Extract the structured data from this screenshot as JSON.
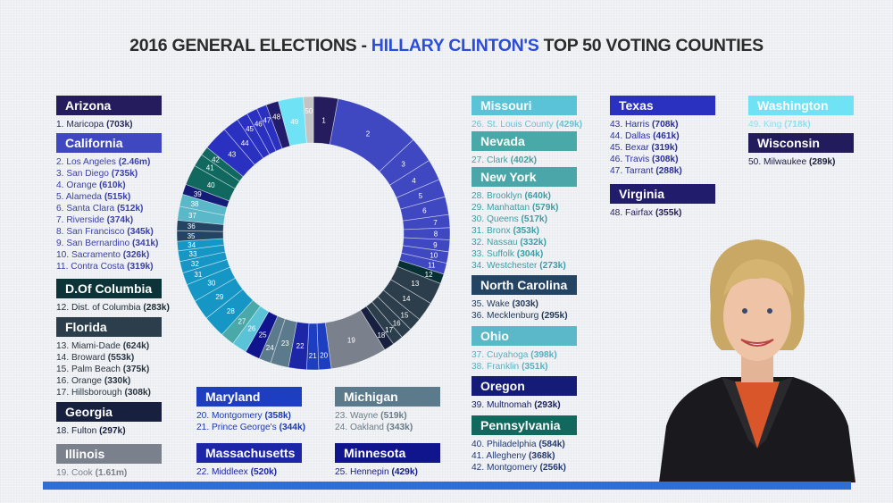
{
  "title": {
    "part1": "2016 GENERAL ELECTIONS - ",
    "highlight": "HILLARY CLINTON'S",
    "part2": " TOP 50 VOTING COUNTIES"
  },
  "colors": {
    "title_highlight": "#2a4ed8",
    "bottom_bar": "#2e6fd6"
  },
  "states": [
    {
      "name": "Arizona",
      "color": "#241c5c",
      "text": "#2a2c5c",
      "items": [
        {
          "label": "1. Maricopa",
          "value": "(703k)"
        }
      ]
    },
    {
      "name": "California",
      "color": "#3f48c0",
      "text": "#3a40a8",
      "items": [
        {
          "label": "2. Los Angeles",
          "value": "(2.46m)"
        },
        {
          "label": "3. San Diego",
          "value": "(735k)"
        },
        {
          "label": "4. Orange",
          "value": "(610k)"
        },
        {
          "label": "5. Alameda",
          "value": "(515k)"
        },
        {
          "label": "6. Santa Clara",
          "value": "(512k)"
        },
        {
          "label": "7. Riverside",
          "value": "(374k)"
        },
        {
          "label": "8. San Francisco",
          "value": "(345k)"
        },
        {
          "label": "9. San Bernardino",
          "value": "(341k)"
        },
        {
          "label": "10. Sacramento",
          "value": "(326k)"
        },
        {
          "label": "11. Contra Costa",
          "value": "(319k)"
        }
      ]
    },
    {
      "name": "D.Of Columbia",
      "color": "#0c3338",
      "text": "#1a2a30",
      "items": [
        {
          "label": "12. Dist. of Columbia",
          "value": "(283k)"
        }
      ]
    },
    {
      "name": "Florida",
      "color": "#2c3e4c",
      "text": "#2a3540",
      "items": [
        {
          "label": "13. Miami-Dade",
          "value": "(624k)"
        },
        {
          "label": "14. Broward",
          "value": "(553k)"
        },
        {
          "label": "15. Palm Beach",
          "value": "(375k)"
        },
        {
          "label": "16. Orange",
          "value": "(330k)"
        },
        {
          "label": "17. Hillsborough",
          "value": "(308k)"
        }
      ]
    },
    {
      "name": "Georgia",
      "color": "#17213f",
      "text": "#17213f",
      "items": [
        {
          "label": "18. Fulton",
          "value": "(297k)"
        }
      ]
    },
    {
      "name": "Illinois",
      "color": "#7a808c",
      "text": "#7a808c",
      "items": [
        {
          "label": "19. Cook",
          "value": "(1.61m)"
        }
      ]
    },
    {
      "name": "Maryland",
      "color": "#1d3ec0",
      "text": "#1d3ab0",
      "items": [
        {
          "label": "20. Montgomery",
          "value": "(358k)"
        },
        {
          "label": "21. Prince George's",
          "value": "(344k)"
        }
      ]
    },
    {
      "name": "Massachusetts",
      "color": "#1e26a8",
      "text": "#1e26a0",
      "items": [
        {
          "label": "22. Middleex",
          "value": "(520k)"
        }
      ]
    },
    {
      "name": "Michigan",
      "color": "#5b7a8c",
      "text": "#6a7c88",
      "items": [
        {
          "label": "23. Wayne",
          "value": "(519k)"
        },
        {
          "label": "24. Oakland",
          "value": "(343k)"
        }
      ]
    },
    {
      "name": "Minnesota",
      "color": "#10158e",
      "text": "#141c80",
      "items": [
        {
          "label": "25. Hennepin",
          "value": "(429k)"
        }
      ]
    },
    {
      "name": "Missouri",
      "color": "#5bc3d8",
      "text": "#6cc0d0",
      "items": [
        {
          "label": "26. St. Louis County",
          "value": "(429k)"
        }
      ]
    },
    {
      "name": "Nevada",
      "color": "#49a8a8",
      "text": "#45a0a0",
      "items": [
        {
          "label": "27. Clark",
          "value": "(402k)"
        }
      ]
    },
    {
      "name": "New York",
      "color": "#4aa6a8",
      "text": "#3c9ea4",
      "items": [
        {
          "label": "28. Brooklyn",
          "value": "(640k)"
        },
        {
          "label": "29. Manhattan",
          "value": "(579k)"
        },
        {
          "label": "30. Queens",
          "value": "(517k)"
        },
        {
          "label": "31. Bronx",
          "value": "(353k)"
        },
        {
          "label": "32. Nassau",
          "value": "(332k)"
        },
        {
          "label": "33. Suffolk",
          "value": "(304k)"
        },
        {
          "label": "34. Westchester",
          "value": "(273k)"
        }
      ]
    },
    {
      "name": "North Carolina",
      "color": "#244464",
      "text": "#243a58",
      "items": [
        {
          "label": "35. Wake",
          "value": "(303k)"
        },
        {
          "label": "36. Mecklenburg",
          "value": "(295k)"
        }
      ]
    },
    {
      "name": "Ohio",
      "color": "#5ab8c8",
      "text": "#5ab0c0",
      "items": [
        {
          "label": "37. Cuyahoga",
          "value": "(398k)"
        },
        {
          "label": "38. Franklin",
          "value": "(351k)"
        }
      ]
    },
    {
      "name": "Oregon",
      "color": "#141c78",
      "text": "#1a2060",
      "items": [
        {
          "label": "39. Multnomah",
          "value": "(293k)"
        }
      ]
    },
    {
      "name": "Pennsylvania",
      "color": "#10685e",
      "text": "#243a70",
      "items": [
        {
          "label": "40. Philadelphia",
          "value": "(584k)"
        },
        {
          "label": "41. Allegheny",
          "value": "(368k)"
        },
        {
          "label": "42. Montgomery",
          "value": "(256k)"
        }
      ]
    },
    {
      "name": "Texas",
      "color": "#2a30c0",
      "text": "#2a2f9a",
      "items": [
        {
          "label": "43. Harris",
          "value": "(708k)"
        },
        {
          "label": "44. Dallas",
          "value": "(461k)"
        },
        {
          "label": "45. Bexar",
          "value": "(319k)"
        },
        {
          "label": "46. Travis",
          "value": "(308k)"
        },
        {
          "label": "47. Tarrant",
          "value": "(288k)"
        }
      ]
    },
    {
      "name": "Virginia",
      "color": "#221c6c",
      "text": "#221c5c",
      "items": [
        {
          "label": "48. Fairfax",
          "value": "(355k)"
        }
      ]
    },
    {
      "name": "Washington",
      "color": "#6fe3f5",
      "text": "#8fe0ee",
      "items": [
        {
          "label": "49. King",
          "value": "(718k)"
        }
      ]
    },
    {
      "name": "Wisconsin",
      "color": "#221c5c",
      "text": "#1c1c3c",
      "items": [
        {
          "label": "50. Milwaukee",
          "value": "(289k)"
        }
      ]
    }
  ],
  "chart_data": {
    "type": "pie",
    "variant": "donut",
    "title": "",
    "start": "top, clockwise",
    "categories": [
      "1",
      "2",
      "3",
      "4",
      "5",
      "6",
      "7",
      "8",
      "9",
      "10",
      "11",
      "12",
      "13",
      "14",
      "15",
      "16",
      "17",
      "18",
      "19",
      "20",
      "21",
      "22",
      "23",
      "24",
      "25",
      "26",
      "27",
      "28",
      "29",
      "30",
      "31",
      "32",
      "33",
      "34",
      "35",
      "36",
      "37",
      "38",
      "39",
      "40",
      "41",
      "42",
      "43",
      "44",
      "45",
      "46",
      "47",
      "48",
      "49",
      "50"
    ],
    "values": [
      703,
      2460,
      735,
      610,
      515,
      512,
      374,
      345,
      341,
      326,
      319,
      283,
      624,
      553,
      375,
      330,
      308,
      297,
      1610,
      358,
      344,
      520,
      519,
      343,
      429,
      429,
      402,
      640,
      579,
      517,
      353,
      332,
      304,
      273,
      303,
      295,
      398,
      351,
      293,
      584,
      368,
      256,
      708,
      461,
      319,
      308,
      288,
      355,
      718,
      289
    ],
    "unit": "thousand votes",
    "colors": [
      "#241c5c",
      "#3f48c0",
      "#3f48c0",
      "#3f48c0",
      "#3f48c0",
      "#3f48c0",
      "#3f48c0",
      "#3f48c0",
      "#3f48c0",
      "#3f48c0",
      "#3f48c0",
      "#063034",
      "#2c3e4c",
      "#2c3e4c",
      "#2c3e4c",
      "#2c3e4c",
      "#2c3e4c",
      "#17213f",
      "#7a808c",
      "#1d3ec0",
      "#1d3ec0",
      "#1e26a8",
      "#5b7a8c",
      "#5b7a8c",
      "#10158e",
      "#5bc3d8",
      "#49a8a8",
      "#1596c4",
      "#1596c4",
      "#1596c4",
      "#1596c4",
      "#1596c4",
      "#1596c4",
      "#1596c4",
      "#244464",
      "#244464",
      "#5ab8c8",
      "#5ab8c8",
      "#141c78",
      "#10685e",
      "#10685e",
      "#10685e",
      "#2a30c0",
      "#2a30c0",
      "#2a30c0",
      "#2a30c0",
      "#2a30c0",
      "#221c6c",
      "#6fe3f5",
      "#c4c4c4"
    ]
  }
}
